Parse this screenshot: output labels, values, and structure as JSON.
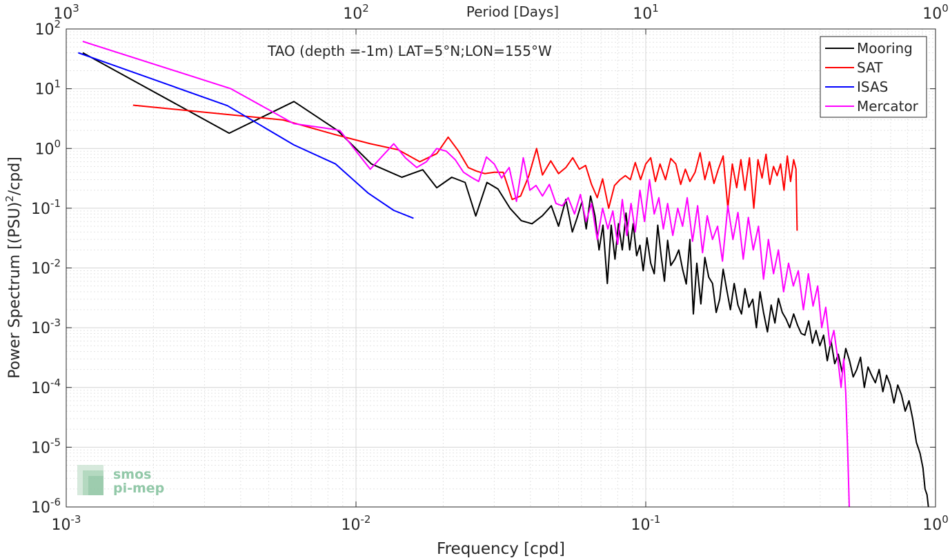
{
  "chart_data": {
    "type": "line",
    "title": "TAO (depth =-1m) LAT=5°N;LON=155°W",
    "xlabel": "Frequency [cpd]",
    "ylabel": "Power Spectrum [(PSU)²/cpd]",
    "top_axis_label": "Period [Days]",
    "x_scale": "log",
    "y_scale": "log",
    "xlim": [
      0.001,
      1
    ],
    "ylim": [
      1e-06,
      100
    ],
    "grid": true,
    "minor_grid": true,
    "legend_position": "top-right",
    "x_ticks": [
      {
        "value": 0.001,
        "base": "10",
        "exp": "-3"
      },
      {
        "value": 0.01,
        "base": "10",
        "exp": "-2"
      },
      {
        "value": 0.1,
        "base": "10",
        "exp": "-1"
      },
      {
        "value": 1,
        "base": "10",
        "exp": "0"
      }
    ],
    "top_ticks": [
      {
        "value": 0.001,
        "base": "10",
        "exp": "3"
      },
      {
        "value": 0.01,
        "base": "10",
        "exp": "2"
      },
      {
        "value": 0.1,
        "base": "10",
        "exp": "1"
      },
      {
        "value": 1,
        "base": "10",
        "exp": "0"
      }
    ],
    "y_ticks": [
      {
        "value": 100,
        "base": "10",
        "exp": "2"
      },
      {
        "value": 10,
        "base": "10",
        "exp": "1"
      },
      {
        "value": 1,
        "base": "10",
        "exp": "0"
      },
      {
        "value": 0.1,
        "base": "10",
        "exp": "-1"
      },
      {
        "value": 0.01,
        "base": "10",
        "exp": "-2"
      },
      {
        "value": 0.001,
        "base": "10",
        "exp": "-3"
      },
      {
        "value": 0.0001,
        "base": "10",
        "exp": "-4"
      },
      {
        "value": 1e-05,
        "base": "10",
        "exp": "-5"
      },
      {
        "value": 1e-06,
        "base": "10",
        "exp": "-6"
      }
    ],
    "series": [
      {
        "name": "Mooring",
        "color": "#000000",
        "x": [
          0.00114,
          0.00365,
          0.00611,
          0.00864,
          0.0113,
          0.0144,
          0.017,
          0.019,
          0.0214,
          0.0238,
          0.0259,
          0.0283,
          0.0309,
          0.034,
          0.0372,
          0.0405,
          0.044,
          0.0472,
          0.05,
          0.053,
          0.0558,
          0.0579,
          0.0603,
          0.0623,
          0.0645,
          0.0668,
          0.069,
          0.0712,
          0.0737,
          0.076,
          0.0783,
          0.0805,
          0.083,
          0.0855,
          0.088,
          0.0905,
          0.093,
          0.0955,
          0.098,
          0.101,
          0.104,
          0.107,
          0.11,
          0.113,
          0.116,
          0.119,
          0.122,
          0.126,
          0.13,
          0.134,
          0.138,
          0.142,
          0.146,
          0.15,
          0.155,
          0.16,
          0.165,
          0.17,
          0.175,
          0.18,
          0.185,
          0.19,
          0.196,
          0.202,
          0.208,
          0.214,
          0.22,
          0.227,
          0.234,
          0.241,
          0.248,
          0.255,
          0.263,
          0.271,
          0.279,
          0.287,
          0.296,
          0.305,
          0.314,
          0.324,
          0.334,
          0.344,
          0.354,
          0.365,
          0.376,
          0.387,
          0.399,
          0.411,
          0.423,
          0.436,
          0.449,
          0.462,
          0.476,
          0.49,
          0.505,
          0.52,
          0.535,
          0.551,
          0.568,
          0.585,
          0.602,
          0.62,
          0.639,
          0.658,
          0.678,
          0.698,
          0.719,
          0.741,
          0.763,
          0.786,
          0.81,
          0.834,
          0.859,
          0.884,
          0.905,
          0.92,
          0.935,
          0.945
        ],
        "y": [
          40,
          1.8,
          6.1,
          2.0,
          0.55,
          0.33,
          0.44,
          0.22,
          0.33,
          0.27,
          0.074,
          0.27,
          0.21,
          0.1,
          0.062,
          0.055,
          0.075,
          0.11,
          0.05,
          0.14,
          0.04,
          0.068,
          0.13,
          0.045,
          0.16,
          0.075,
          0.02,
          0.052,
          0.0055,
          0.052,
          0.014,
          0.055,
          0.02,
          0.083,
          0.02,
          0.055,
          0.016,
          0.024,
          0.009,
          0.032,
          0.012,
          0.008,
          0.052,
          0.016,
          0.006,
          0.029,
          0.011,
          0.014,
          0.02,
          0.0095,
          0.0054,
          0.03,
          0.0017,
          0.012,
          0.0025,
          0.015,
          0.007,
          0.0055,
          0.0018,
          0.003,
          0.0095,
          0.0045,
          0.002,
          0.0055,
          0.0024,
          0.0017,
          0.0045,
          0.0022,
          0.003,
          0.001,
          0.004,
          0.0018,
          0.00085,
          0.0024,
          0.0012,
          0.0031,
          0.0018,
          0.0014,
          0.001,
          0.0017,
          0.0011,
          0.0008,
          0.00075,
          0.0013,
          0.00055,
          0.0009,
          0.0005,
          0.00075,
          0.00028,
          0.0006,
          0.00025,
          0.00036,
          0.00018,
          0.00045,
          0.00028,
          0.00015,
          0.0002,
          0.00032,
          0.0001,
          0.00022,
          0.00016,
          0.00012,
          0.0002,
          8.5e-05,
          0.00016,
          0.00011,
          5.5e-05,
          0.00011,
          7.5e-05,
          4e-05,
          6e-05,
          3e-05,
          1.2e-05,
          8e-06,
          4.5e-06,
          2e-06,
          1.6e-06,
          1e-06
        ]
      },
      {
        "name": "SAT",
        "color": "#ff0000",
        "x": [
          0.0017,
          0.0056,
          0.0085,
          0.0112,
          0.014,
          0.0166,
          0.019,
          0.0208,
          0.0226,
          0.0244,
          0.026,
          0.0278,
          0.03,
          0.0322,
          0.0346,
          0.037,
          0.0395,
          0.042,
          0.044,
          0.047,
          0.05,
          0.053,
          0.056,
          0.059,
          0.062,
          0.065,
          0.068,
          0.071,
          0.0745,
          0.078,
          0.0815,
          0.085,
          0.0885,
          0.092,
          0.096,
          0.1,
          0.104,
          0.108,
          0.112,
          0.117,
          0.122,
          0.127,
          0.132,
          0.137,
          0.142,
          0.148,
          0.154,
          0.16,
          0.166,
          0.172,
          0.178,
          0.185,
          0.192,
          0.199,
          0.206,
          0.213,
          0.22,
          0.228,
          0.236,
          0.244,
          0.252,
          0.26,
          0.268,
          0.276,
          0.284,
          0.292,
          0.3,
          0.308,
          0.316,
          0.324,
          0.33,
          0.333
        ],
        "y": [
          5.3,
          3.0,
          1.7,
          1.2,
          0.95,
          0.6,
          0.82,
          1.55,
          0.9,
          0.48,
          0.42,
          0.38,
          0.4,
          0.4,
          0.14,
          0.16,
          0.35,
          1.0,
          0.36,
          0.62,
          0.38,
          0.48,
          0.7,
          0.45,
          0.52,
          0.25,
          0.15,
          0.31,
          0.1,
          0.24,
          0.3,
          0.35,
          0.3,
          0.58,
          0.3,
          0.55,
          0.7,
          0.28,
          0.55,
          0.3,
          0.68,
          0.55,
          0.25,
          0.45,
          0.28,
          0.4,
          0.85,
          0.3,
          0.6,
          0.26,
          0.45,
          0.75,
          0.1,
          0.55,
          0.22,
          0.65,
          0.2,
          0.7,
          0.1,
          0.65,
          0.32,
          0.8,
          0.25,
          0.5,
          0.35,
          0.55,
          0.2,
          0.75,
          0.28,
          0.65,
          0.45,
          0.042
        ]
      },
      {
        "name": "ISAS",
        "color": "#0000ff",
        "x": [
          0.0011,
          0.0036,
          0.0061,
          0.0085,
          0.011,
          0.0135,
          0.0158
        ],
        "y": [
          40,
          5.2,
          1.15,
          0.55,
          0.18,
          0.092,
          0.068
        ]
      },
      {
        "name": "Mercator",
        "color": "#ff00ff",
        "x": [
          0.00114,
          0.0037,
          0.0061,
          0.0083,
          0.0088,
          0.0112,
          0.0125,
          0.0135,
          0.0148,
          0.0162,
          0.0175,
          0.019,
          0.0205,
          0.022,
          0.0235,
          0.025,
          0.0265,
          0.0282,
          0.03,
          0.0318,
          0.0338,
          0.0358,
          0.0378,
          0.0398,
          0.0418,
          0.044,
          0.0465,
          0.049,
          0.0515,
          0.054,
          0.0568,
          0.0595,
          0.0622,
          0.065,
          0.068,
          0.071,
          0.074,
          0.077,
          0.08,
          0.083,
          0.086,
          0.089,
          0.092,
          0.0955,
          0.099,
          0.103,
          0.107,
          0.111,
          0.115,
          0.119,
          0.124,
          0.129,
          0.134,
          0.139,
          0.145,
          0.151,
          0.157,
          0.163,
          0.17,
          0.177,
          0.184,
          0.192,
          0.2,
          0.208,
          0.217,
          0.226,
          0.235,
          0.245,
          0.255,
          0.265,
          0.276,
          0.287,
          0.299,
          0.311,
          0.323,
          0.336,
          0.35,
          0.364,
          0.378,
          0.392,
          0.405,
          0.418,
          0.432,
          0.446,
          0.46,
          0.472,
          0.482,
          0.49,
          0.498,
          0.504
        ],
        "y": [
          62,
          10,
          2.6,
          2.1,
          2.0,
          0.45,
          0.8,
          1.2,
          0.7,
          0.48,
          0.6,
          1.0,
          0.9,
          0.65,
          0.4,
          0.33,
          0.28,
          0.72,
          0.55,
          0.32,
          0.48,
          0.13,
          0.7,
          0.2,
          0.24,
          0.16,
          0.25,
          0.12,
          0.11,
          0.15,
          0.08,
          0.17,
          0.06,
          0.12,
          0.03,
          0.1,
          0.045,
          0.09,
          0.025,
          0.14,
          0.035,
          0.12,
          0.04,
          0.2,
          0.06,
          0.3,
          0.08,
          0.15,
          0.045,
          0.12,
          0.035,
          0.1,
          0.05,
          0.15,
          0.028,
          0.11,
          0.018,
          0.075,
          0.03,
          0.05,
          0.013,
          0.11,
          0.03,
          0.085,
          0.014,
          0.07,
          0.02,
          0.05,
          0.0065,
          0.03,
          0.008,
          0.02,
          0.004,
          0.012,
          0.005,
          0.009,
          0.002,
          0.008,
          0.0023,
          0.005,
          0.001,
          0.0022,
          0.0005,
          0.0009,
          0.0003,
          0.0001,
          0.0003,
          8e-05,
          8e-06,
          1e-06
        ]
      }
    ]
  },
  "watermark": {
    "line1": "smos",
    "line2": "pi-mep",
    "color": "#7fbf9a"
  }
}
